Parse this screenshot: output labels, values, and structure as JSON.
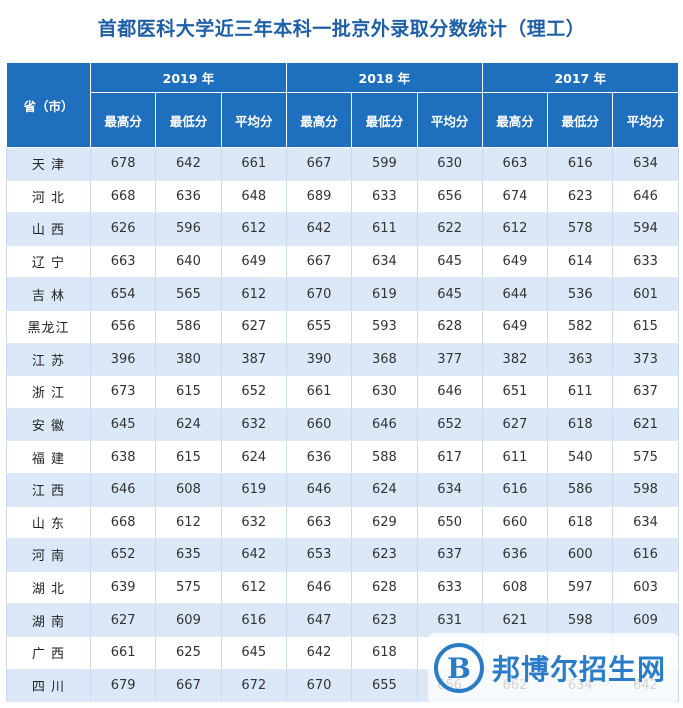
{
  "title": "首都医科大学近三年本科一批京外录取分数统计（理工）",
  "header": {
    "province_label": "省（市）",
    "years": [
      "2019 年",
      "2018 年",
      "2017 年"
    ],
    "metrics": [
      "最高分",
      "最低分",
      "平均分"
    ]
  },
  "rows": [
    {
      "province": "天 津",
      "v": [
        678,
        642,
        661,
        667,
        599,
        630,
        663,
        616,
        634
      ]
    },
    {
      "province": "河 北",
      "v": [
        668,
        636,
        648,
        689,
        633,
        656,
        674,
        623,
        646
      ]
    },
    {
      "province": "山 西",
      "v": [
        626,
        596,
        612,
        642,
        611,
        622,
        612,
        578,
        594
      ]
    },
    {
      "province": "辽 宁",
      "v": [
        663,
        640,
        649,
        667,
        634,
        645,
        649,
        614,
        633
      ]
    },
    {
      "province": "吉 林",
      "v": [
        654,
        565,
        612,
        670,
        619,
        645,
        644,
        536,
        601
      ]
    },
    {
      "province": "黑龙江",
      "v": [
        656,
        586,
        627,
        655,
        593,
        628,
        649,
        582,
        615
      ]
    },
    {
      "province": "江 苏",
      "v": [
        396,
        380,
        387,
        390,
        368,
        377,
        382,
        363,
        373
      ]
    },
    {
      "province": "浙 江",
      "v": [
        673,
        615,
        652,
        661,
        630,
        646,
        651,
        611,
        637
      ]
    },
    {
      "province": "安 徽",
      "v": [
        645,
        624,
        632,
        660,
        646,
        652,
        627,
        618,
        621
      ]
    },
    {
      "province": "福 建",
      "v": [
        638,
        615,
        624,
        636,
        588,
        617,
        611,
        540,
        575
      ]
    },
    {
      "province": "江 西",
      "v": [
        646,
        608,
        619,
        646,
        624,
        634,
        616,
        586,
        598
      ]
    },
    {
      "province": "山 东",
      "v": [
        668,
        612,
        632,
        663,
        629,
        650,
        660,
        618,
        634
      ]
    },
    {
      "province": "河 南",
      "v": [
        652,
        635,
        642,
        653,
        623,
        637,
        636,
        600,
        616
      ]
    },
    {
      "province": "湖 北",
      "v": [
        639,
        575,
        612,
        646,
        628,
        633,
        608,
        597,
        603
      ]
    },
    {
      "province": "湖 南",
      "v": [
        627,
        609,
        616,
        647,
        623,
        631,
        621,
        598,
        609
      ]
    },
    {
      "province": "广 西",
      "v": [
        661,
        625,
        645,
        642,
        618,
        "",
        "",
        "",
        ""
      ]
    },
    {
      "province": "四 川",
      "v": [
        679,
        667,
        672,
        670,
        655,
        656,
        662,
        634,
        642
      ]
    }
  ],
  "watermark": {
    "logo_letter": "B",
    "text": "邦博尔招生网"
  }
}
